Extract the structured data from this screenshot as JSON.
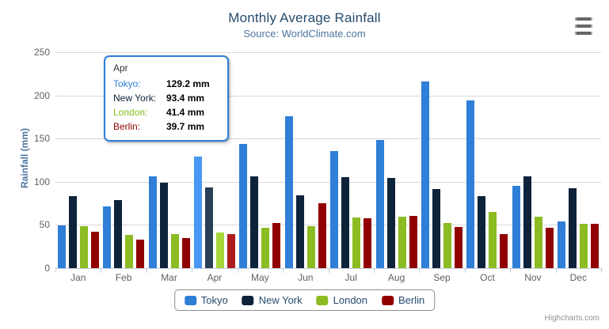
{
  "chart": {
    "title": "Monthly Average Rainfall",
    "subtitle": "Source: WorldClimate.com",
    "credits": "Highcharts.com"
  },
  "tooltip": {
    "header": "Apr",
    "rows": [
      {
        "label": "Tokyo:",
        "value": "129.2 mm",
        "color": "#2f7ed8"
      },
      {
        "label": "New York:",
        "value": "93.4 mm",
        "color": "#0d233a"
      },
      {
        "label": "London:",
        "value": "41.4 mm",
        "color": "#8bbc21"
      },
      {
        "label": "Berlin:",
        "value": "39.7 mm",
        "color": "#910000"
      }
    ],
    "border_color": "#2f7ed8"
  },
  "chart_data": {
    "type": "bar",
    "title": "Monthly Average Rainfall",
    "subtitle": "Source: WorldClimate.com",
    "xlabel": "",
    "ylabel": "Rainfall (mm)",
    "ylim": [
      0,
      250
    ],
    "yticks": [
      0,
      50,
      100,
      150,
      200,
      250
    ],
    "grid": true,
    "legend_position": "bottom",
    "hovered_category": "Apr",
    "categories": [
      "Jan",
      "Feb",
      "Mar",
      "Apr",
      "May",
      "Jun",
      "Jul",
      "Aug",
      "Sep",
      "Oct",
      "Nov",
      "Dec"
    ],
    "series": [
      {
        "name": "Tokyo",
        "color": "#2f7ed8",
        "hover_color": "#4897f2",
        "values": [
          49.9,
          71.5,
          106.4,
          129.2,
          144.0,
          176.0,
          135.6,
          148.5,
          216.4,
          194.1,
          95.6,
          54.4
        ]
      },
      {
        "name": "New York",
        "color": "#0d233a",
        "hover_color": "#293f56",
        "values": [
          83.6,
          78.8,
          98.5,
          93.4,
          106.0,
          84.5,
          105.0,
          104.3,
          91.2,
          83.5,
          106.6,
          92.3
        ]
      },
      {
        "name": "London",
        "color": "#8bbc21",
        "hover_color": "#a6d63a",
        "values": [
          48.9,
          38.8,
          39.3,
          41.4,
          47.0,
          48.3,
          59.0,
          59.6,
          52.4,
          65.2,
          59.3,
          51.2
        ]
      },
      {
        "name": "Berlin",
        "color": "#910000",
        "hover_color": "#ac1c1c",
        "values": [
          42.4,
          33.2,
          34.5,
          39.7,
          52.6,
          75.5,
          57.4,
          60.4,
          47.6,
          39.1,
          46.8,
          51.1
        ]
      }
    ]
  },
  "axis_colors": {
    "grid": "#d8d8d8",
    "axis_line": "#c0d0e0",
    "labels": "#606060"
  }
}
